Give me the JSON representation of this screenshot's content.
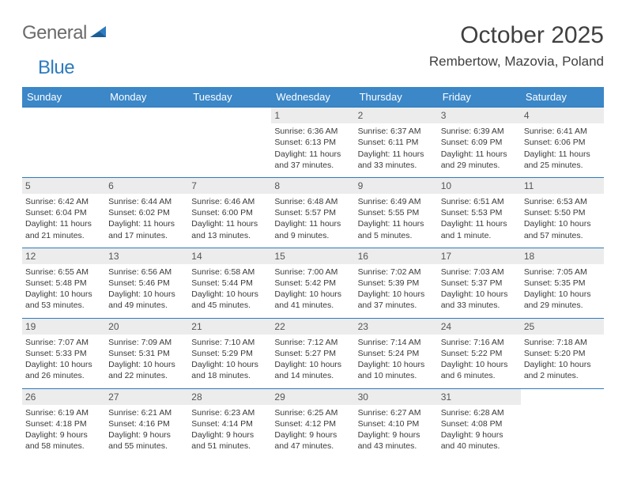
{
  "brand": {
    "word1": "General",
    "word2": "Blue"
  },
  "title": "October 2025",
  "location": "Rembertow, Mazovia, Poland",
  "day_headers": [
    "Sunday",
    "Monday",
    "Tuesday",
    "Wednesday",
    "Thursday",
    "Friday",
    "Saturday"
  ],
  "colors": {
    "header_bg": "#3b87c8",
    "header_text": "#ffffff",
    "cell_border": "#2e7bbf",
    "daynum_bg": "#ececec",
    "page_bg": "#ffffff",
    "brand_gray": "#6b6b6b",
    "brand_blue": "#2e7bbf"
  },
  "weeks": [
    [
      {
        "n": "",
        "sr": "",
        "ss": "",
        "dl": ""
      },
      {
        "n": "",
        "sr": "",
        "ss": "",
        "dl": ""
      },
      {
        "n": "",
        "sr": "",
        "ss": "",
        "dl": ""
      },
      {
        "n": "1",
        "sr": "Sunrise: 6:36 AM",
        "ss": "Sunset: 6:13 PM",
        "dl": "Daylight: 11 hours and 37 minutes."
      },
      {
        "n": "2",
        "sr": "Sunrise: 6:37 AM",
        "ss": "Sunset: 6:11 PM",
        "dl": "Daylight: 11 hours and 33 minutes."
      },
      {
        "n": "3",
        "sr": "Sunrise: 6:39 AM",
        "ss": "Sunset: 6:09 PM",
        "dl": "Daylight: 11 hours and 29 minutes."
      },
      {
        "n": "4",
        "sr": "Sunrise: 6:41 AM",
        "ss": "Sunset: 6:06 PM",
        "dl": "Daylight: 11 hours and 25 minutes."
      }
    ],
    [
      {
        "n": "5",
        "sr": "Sunrise: 6:42 AM",
        "ss": "Sunset: 6:04 PM",
        "dl": "Daylight: 11 hours and 21 minutes."
      },
      {
        "n": "6",
        "sr": "Sunrise: 6:44 AM",
        "ss": "Sunset: 6:02 PM",
        "dl": "Daylight: 11 hours and 17 minutes."
      },
      {
        "n": "7",
        "sr": "Sunrise: 6:46 AM",
        "ss": "Sunset: 6:00 PM",
        "dl": "Daylight: 11 hours and 13 minutes."
      },
      {
        "n": "8",
        "sr": "Sunrise: 6:48 AM",
        "ss": "Sunset: 5:57 PM",
        "dl": "Daylight: 11 hours and 9 minutes."
      },
      {
        "n": "9",
        "sr": "Sunrise: 6:49 AM",
        "ss": "Sunset: 5:55 PM",
        "dl": "Daylight: 11 hours and 5 minutes."
      },
      {
        "n": "10",
        "sr": "Sunrise: 6:51 AM",
        "ss": "Sunset: 5:53 PM",
        "dl": "Daylight: 11 hours and 1 minute."
      },
      {
        "n": "11",
        "sr": "Sunrise: 6:53 AM",
        "ss": "Sunset: 5:50 PM",
        "dl": "Daylight: 10 hours and 57 minutes."
      }
    ],
    [
      {
        "n": "12",
        "sr": "Sunrise: 6:55 AM",
        "ss": "Sunset: 5:48 PM",
        "dl": "Daylight: 10 hours and 53 minutes."
      },
      {
        "n": "13",
        "sr": "Sunrise: 6:56 AM",
        "ss": "Sunset: 5:46 PM",
        "dl": "Daylight: 10 hours and 49 minutes."
      },
      {
        "n": "14",
        "sr": "Sunrise: 6:58 AM",
        "ss": "Sunset: 5:44 PM",
        "dl": "Daylight: 10 hours and 45 minutes."
      },
      {
        "n": "15",
        "sr": "Sunrise: 7:00 AM",
        "ss": "Sunset: 5:42 PM",
        "dl": "Daylight: 10 hours and 41 minutes."
      },
      {
        "n": "16",
        "sr": "Sunrise: 7:02 AM",
        "ss": "Sunset: 5:39 PM",
        "dl": "Daylight: 10 hours and 37 minutes."
      },
      {
        "n": "17",
        "sr": "Sunrise: 7:03 AM",
        "ss": "Sunset: 5:37 PM",
        "dl": "Daylight: 10 hours and 33 minutes."
      },
      {
        "n": "18",
        "sr": "Sunrise: 7:05 AM",
        "ss": "Sunset: 5:35 PM",
        "dl": "Daylight: 10 hours and 29 minutes."
      }
    ],
    [
      {
        "n": "19",
        "sr": "Sunrise: 7:07 AM",
        "ss": "Sunset: 5:33 PM",
        "dl": "Daylight: 10 hours and 26 minutes."
      },
      {
        "n": "20",
        "sr": "Sunrise: 7:09 AM",
        "ss": "Sunset: 5:31 PM",
        "dl": "Daylight: 10 hours and 22 minutes."
      },
      {
        "n": "21",
        "sr": "Sunrise: 7:10 AM",
        "ss": "Sunset: 5:29 PM",
        "dl": "Daylight: 10 hours and 18 minutes."
      },
      {
        "n": "22",
        "sr": "Sunrise: 7:12 AM",
        "ss": "Sunset: 5:27 PM",
        "dl": "Daylight: 10 hours and 14 minutes."
      },
      {
        "n": "23",
        "sr": "Sunrise: 7:14 AM",
        "ss": "Sunset: 5:24 PM",
        "dl": "Daylight: 10 hours and 10 minutes."
      },
      {
        "n": "24",
        "sr": "Sunrise: 7:16 AM",
        "ss": "Sunset: 5:22 PM",
        "dl": "Daylight: 10 hours and 6 minutes."
      },
      {
        "n": "25",
        "sr": "Sunrise: 7:18 AM",
        "ss": "Sunset: 5:20 PM",
        "dl": "Daylight: 10 hours and 2 minutes."
      }
    ],
    [
      {
        "n": "26",
        "sr": "Sunrise: 6:19 AM",
        "ss": "Sunset: 4:18 PM",
        "dl": "Daylight: 9 hours and 58 minutes."
      },
      {
        "n": "27",
        "sr": "Sunrise: 6:21 AM",
        "ss": "Sunset: 4:16 PM",
        "dl": "Daylight: 9 hours and 55 minutes."
      },
      {
        "n": "28",
        "sr": "Sunrise: 6:23 AM",
        "ss": "Sunset: 4:14 PM",
        "dl": "Daylight: 9 hours and 51 minutes."
      },
      {
        "n": "29",
        "sr": "Sunrise: 6:25 AM",
        "ss": "Sunset: 4:12 PM",
        "dl": "Daylight: 9 hours and 47 minutes."
      },
      {
        "n": "30",
        "sr": "Sunrise: 6:27 AM",
        "ss": "Sunset: 4:10 PM",
        "dl": "Daylight: 9 hours and 43 minutes."
      },
      {
        "n": "31",
        "sr": "Sunrise: 6:28 AM",
        "ss": "Sunset: 4:08 PM",
        "dl": "Daylight: 9 hours and 40 minutes."
      },
      {
        "n": "",
        "sr": "",
        "ss": "",
        "dl": ""
      }
    ]
  ]
}
